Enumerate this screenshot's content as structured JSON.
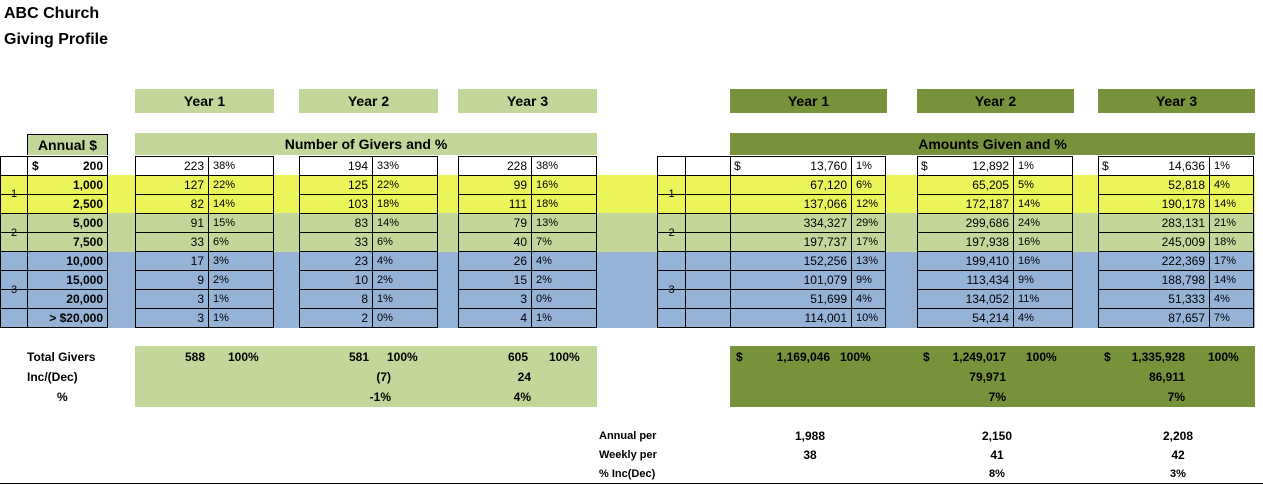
{
  "title": [
    "ABC Church",
    "Giving Profile"
  ],
  "year_headers": [
    "Year 1",
    "Year 2",
    "Year 3"
  ],
  "annual_label": "Annual $",
  "givers_title": "Number of Givers and %",
  "amounts_title": "Amounts Given and %",
  "currency": "$",
  "tiers": [
    {
      "group": "",
      "label": "200",
      "givers": [
        [
          "223",
          "38%"
        ],
        [
          "194",
          "33%"
        ],
        [
          "228",
          "38%"
        ]
      ],
      "amounts": [
        [
          "13,760",
          "1%"
        ],
        [
          "12,892",
          "1%"
        ],
        [
          "14,636",
          "1%"
        ]
      ]
    },
    {
      "group": "1",
      "label": "1,000",
      "givers": [
        [
          "127",
          "22%"
        ],
        [
          "125",
          "22%"
        ],
        [
          "99",
          "16%"
        ]
      ],
      "amounts": [
        [
          "67,120",
          "6%"
        ],
        [
          "65,205",
          "5%"
        ],
        [
          "52,818",
          "4%"
        ]
      ]
    },
    {
      "group": "",
      "label": "2,500",
      "givers": [
        [
          "82",
          "14%"
        ],
        [
          "103",
          "18%"
        ],
        [
          "111",
          "18%"
        ]
      ],
      "amounts": [
        [
          "137,066",
          "12%"
        ],
        [
          "172,187",
          "14%"
        ],
        [
          "190,178",
          "14%"
        ]
      ]
    },
    {
      "group": "2",
      "label": "5,000",
      "givers": [
        [
          "91",
          "15%"
        ],
        [
          "83",
          "14%"
        ],
        [
          "79",
          "13%"
        ]
      ],
      "amounts": [
        [
          "334,327",
          "29%"
        ],
        [
          "299,686",
          "24%"
        ],
        [
          "283,131",
          "21%"
        ]
      ]
    },
    {
      "group": "",
      "label": "7,500",
      "givers": [
        [
          "33",
          "6%"
        ],
        [
          "33",
          "6%"
        ],
        [
          "40",
          "7%"
        ]
      ],
      "amounts": [
        [
          "197,737",
          "17%"
        ],
        [
          "197,938",
          "16%"
        ],
        [
          "245,009",
          "18%"
        ]
      ]
    },
    {
      "group": "3",
      "label": "10,000",
      "givers": [
        [
          "17",
          "3%"
        ],
        [
          "23",
          "4%"
        ],
        [
          "26",
          "4%"
        ]
      ],
      "amounts": [
        [
          "152,256",
          "13%"
        ],
        [
          "199,410",
          "16%"
        ],
        [
          "222,369",
          "17%"
        ]
      ]
    },
    {
      "group": "",
      "label": "15,000",
      "givers": [
        [
          "9",
          "2%"
        ],
        [
          "10",
          "2%"
        ],
        [
          "15",
          "2%"
        ]
      ],
      "amounts": [
        [
          "101,079",
          "9%"
        ],
        [
          "113,434",
          "9%"
        ],
        [
          "188,798",
          "14%"
        ]
      ]
    },
    {
      "group": "",
      "label": "20,000",
      "givers": [
        [
          "3",
          "1%"
        ],
        [
          "8",
          "1%"
        ],
        [
          "3",
          "0%"
        ]
      ],
      "amounts": [
        [
          "51,699",
          "4%"
        ],
        [
          "134,052",
          "11%"
        ],
        [
          "51,333",
          "4%"
        ]
      ]
    },
    {
      "group": "",
      "label": "> $20,000",
      "givers": [
        [
          "3",
          "1%"
        ],
        [
          "2",
          "0%"
        ],
        [
          "4",
          "1%"
        ]
      ],
      "amounts": [
        [
          "114,001",
          "10%"
        ],
        [
          "54,214",
          "4%"
        ],
        [
          "87,657",
          "7%"
        ]
      ]
    }
  ],
  "groups": [
    "1",
    "2",
    "3"
  ],
  "totals": {
    "labels": [
      "Total Givers",
      "Inc/(Dec)",
      "%"
    ],
    "givers": [
      {
        "count": "588",
        "pct": "100%",
        "inc": "",
        "inc_pct": ""
      },
      {
        "count": "581",
        "pct": "100%",
        "inc": "(7)",
        "inc_pct": "-1%"
      },
      {
        "count": "605",
        "pct": "100%",
        "inc": "24",
        "inc_pct": "4%"
      }
    ],
    "amounts": [
      {
        "cur": "$",
        "total": "1,169,046",
        "pct": "100%",
        "inc": "",
        "inc_pct": ""
      },
      {
        "cur": "$",
        "total": "1,249,017",
        "pct": "100%",
        "inc": "79,971",
        "inc_pct": "7%"
      },
      {
        "cur": "$",
        "total": "1,335,928",
        "pct": "100%",
        "inc": "86,911",
        "inc_pct": "7%"
      }
    ]
  },
  "per": {
    "labels": [
      "Annual per",
      "Weekly per",
      "% Inc(Dec)"
    ],
    "years": [
      {
        "annual": "1,988",
        "weekly": "38",
        "inc": ""
      },
      {
        "annual": "2,150",
        "weekly": "41",
        "inc": "8%"
      },
      {
        "annual": "2,208",
        "weekly": "42",
        "inc": "3%"
      }
    ]
  },
  "colors": {
    "light_green": "#c4d79b",
    "dark_green": "#76933c",
    "yellow": "#ebf55a",
    "blue": "#95b3d7"
  }
}
